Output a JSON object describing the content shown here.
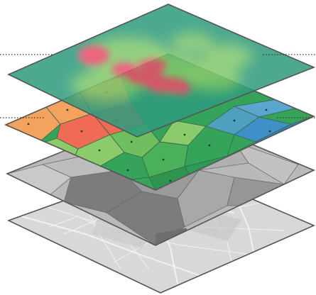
{
  "diagram": {
    "layers": [
      {
        "name": "heatmap-layer"
      },
      {
        "name": "voronoi-layer"
      },
      {
        "name": "district-boundaries-layer"
      },
      {
        "name": "base-map-layer"
      }
    ],
    "colors": {
      "heat_base": "#2f9b7e",
      "heat_mid": "#8fcf6a",
      "heat_hot": "#ea4d6b",
      "voronoi_orange": "#f4a35f",
      "voronoi_red": "#ef6b55",
      "voronoi_green_light": "#8ccb6b",
      "voronoi_green": "#35a35a",
      "voronoi_blue": "#3f8fc8",
      "district_gray": "#b9b9b9",
      "district_dark": "#7c7c7c",
      "base_map": "#d8d8d8",
      "outline": "#555555",
      "dotted_line": "#333333"
    }
  }
}
